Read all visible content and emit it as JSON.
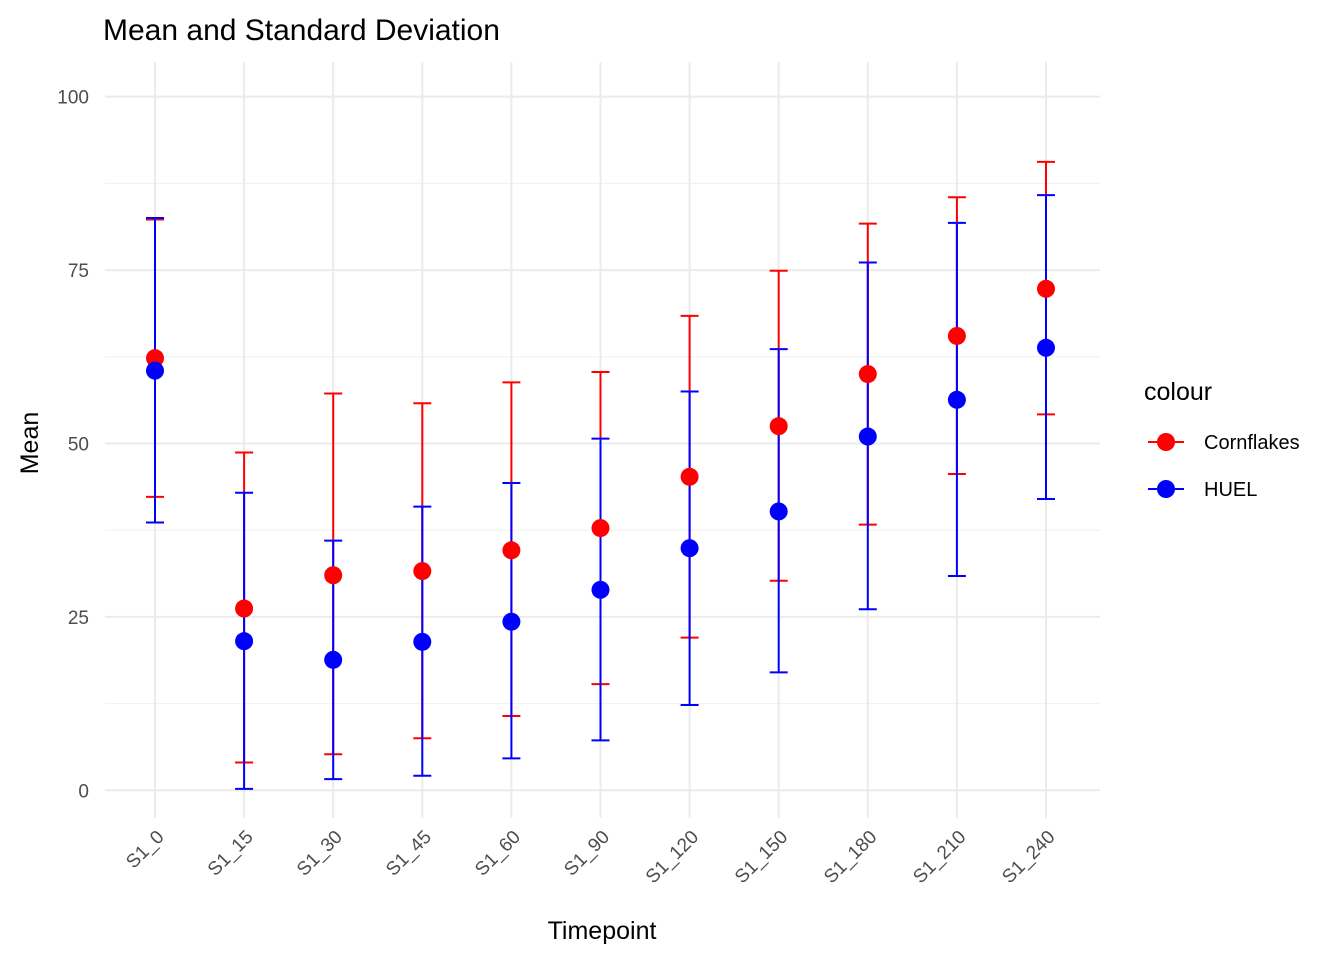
{
  "chart_data": {
    "type": "scatter",
    "title": "Mean and Standard Deviation",
    "xlabel": "Timepoint",
    "ylabel": "Mean",
    "categories": [
      "S1_0",
      "S1_15",
      "S1_30",
      "S1_45",
      "S1_60",
      "S1_90",
      "S1_120",
      "S1_150",
      "S1_180",
      "S1_210",
      "S1_240"
    ],
    "ylim": [
      -4,
      105
    ],
    "yticks": [
      0,
      25,
      50,
      75,
      100
    ],
    "grid": true,
    "legend": {
      "title": "colour",
      "position": "right"
    },
    "series": [
      {
        "name": "Cornflakes",
        "color": "#FF0000",
        "mean": [
          62.3,
          26.2,
          31.0,
          31.6,
          34.6,
          37.8,
          45.2,
          52.5,
          60.0,
          65.5,
          72.3
        ],
        "lower": [
          42.3,
          4.0,
          5.2,
          7.5,
          10.7,
          15.3,
          22.0,
          30.2,
          38.3,
          45.6,
          54.2
        ],
        "upper": [
          82.3,
          48.7,
          57.2,
          55.8,
          58.8,
          60.3,
          68.4,
          74.9,
          81.7,
          85.5,
          90.6
        ]
      },
      {
        "name": "HUEL",
        "color": "#0000FF",
        "mean": [
          60.5,
          21.5,
          18.8,
          21.4,
          24.3,
          28.9,
          34.9,
          40.2,
          51.0,
          56.3,
          63.8
        ],
        "lower": [
          38.6,
          0.2,
          1.6,
          2.1,
          4.6,
          7.2,
          12.3,
          17.0,
          26.1,
          30.9,
          42.0
        ],
        "upper": [
          82.5,
          42.9,
          36.0,
          40.9,
          44.3,
          50.7,
          57.5,
          63.6,
          76.1,
          81.8,
          85.8
        ]
      }
    ]
  }
}
